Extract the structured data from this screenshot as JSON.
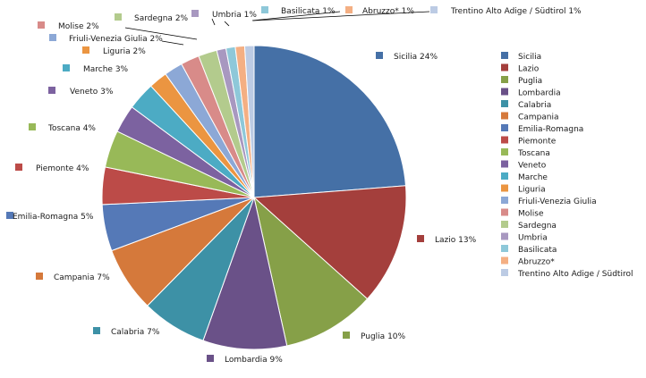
{
  "chart_data": {
    "type": "pie",
    "categories": [
      "Sicilia",
      "Lazio",
      "Puglia",
      "Lombardia",
      "Calabria",
      "Campania",
      "Emilia-Romagna",
      "Piemonte",
      "Toscana",
      "Veneto",
      "Marche",
      "Liguria",
      "Friuli-Venezia Giulia",
      "Molise",
      "Sardegna",
      "Umbria",
      "Basilicata",
      "Abruzzo*",
      "Trentino Alto Adige / Südtirol"
    ],
    "values": [
      24,
      13,
      10,
      9,
      7,
      7,
      5,
      4,
      4,
      3,
      3,
      2,
      2,
      2,
      2,
      1,
      1,
      1,
      1
    ],
    "labels": [
      "Sicilia 24%",
      "Lazio 13%",
      "Puglia 10%",
      "Lombardia 9%",
      "Calabria 7%",
      "Campania 7%",
      "Emilia-Romagna 5%",
      "Piemonte 4%",
      "Toscana 4%",
      "Veneto 3%",
      "Marche 3%",
      "Liguria 2%",
      "Friuli-Venezia Giulia 2%",
      "Molise 2%",
      "Sardegna 2%",
      "Umbria 1%",
      "Basilicata 1%",
      "Abruzzo* 1%",
      "Trentino Alto Adige / Südtirol 1%"
    ],
    "colors": [
      "#4570A6",
      "#A43F3C",
      "#86A048",
      "#6A5188",
      "#3D91A6",
      "#D5793B",
      "#5579B7",
      "#BC4B48",
      "#98B958",
      "#7C62A0",
      "#4CABC4",
      "#EB9541",
      "#8CA8D6",
      "#D88B89",
      "#B3CB8D",
      "#A898C0",
      "#8EC8D9",
      "#F4AF83",
      "#BCCBE4"
    ],
    "legend": "right",
    "title": "",
    "start_angle_deg": 0,
    "direction": "clockwise"
  }
}
